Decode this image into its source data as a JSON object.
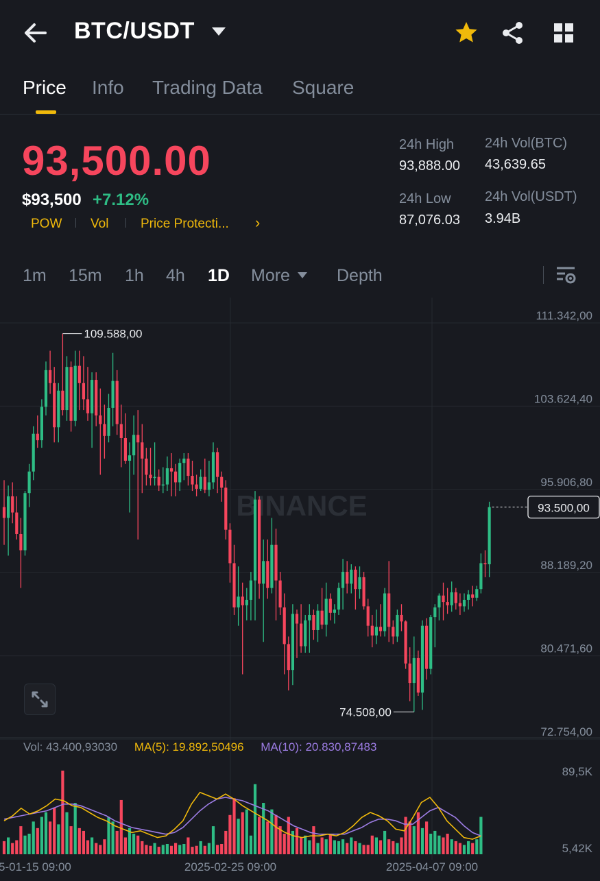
{
  "header": {
    "pair": "BTC/USDT",
    "icons": [
      "back-arrow-icon",
      "caret-down-icon",
      "star-icon",
      "share-icon",
      "grid-icon"
    ],
    "star_color": "#f0b90b"
  },
  "tabs": [
    {
      "label": "Price",
      "active": true
    },
    {
      "label": "Info"
    },
    {
      "label": "Trading Data"
    },
    {
      "label": "Square"
    }
  ],
  "price": {
    "last": "93,500.00",
    "usd": "$93,500",
    "change": "+7.12%",
    "tags": [
      "POW",
      "Vol",
      "Price Protecti..."
    ],
    "tags_arrow": "›"
  },
  "stats": {
    "high_label": "24h High",
    "high": "93,888.00",
    "low_label": "24h Low",
    "low": "87,076.03",
    "vol_btc_label": "24h Vol(BTC)",
    "vol_btc": "43,639.65",
    "vol_usdt_label": "24h Vol(USDT)",
    "vol_usdt": "3.94B"
  },
  "timeframes": {
    "items": [
      "1m",
      "15m",
      "1h",
      "4h",
      "1D"
    ],
    "active": "1D",
    "more": "More",
    "depth": "Depth"
  },
  "colors": {
    "up": "#2ebd85",
    "down": "#f6465d",
    "accent": "#f0b90b",
    "ma5": "#f0b90b",
    "ma10": "#9c7ce3",
    "bg": "#181a20"
  },
  "chart_data": {
    "type": "candlestick",
    "watermark": "BINANCE",
    "price_axis": [
      "111.342,00",
      "103.624,40",
      "95.906,80",
      "88.189,20",
      "80.471,60",
      "72.754,00"
    ],
    "ylim": [
      72754,
      111342
    ],
    "current_price_label": "93.500,00",
    "high_marker": "109.588,00",
    "low_marker": "74.508,00",
    "x_ticks": [
      "5-01-15 09:00",
      "2025-02-25 09:00",
      "2025-04-07 09:00"
    ],
    "candles": [
      {
        "o": 93500,
        "h": 96000,
        "l": 90000,
        "c": 92500
      },
      {
        "o": 92500,
        "h": 95500,
        "l": 89000,
        "c": 94500
      },
      {
        "o": 94500,
        "h": 95800,
        "l": 92000,
        "c": 93000
      },
      {
        "o": 93000,
        "h": 94500,
        "l": 90500,
        "c": 91000
      },
      {
        "o": 91000,
        "h": 92500,
        "l": 86000,
        "c": 89500
      },
      {
        "o": 89500,
        "h": 95000,
        "l": 89000,
        "c": 94800
      },
      {
        "o": 94800,
        "h": 97500,
        "l": 93500,
        "c": 96800
      },
      {
        "o": 96800,
        "h": 101000,
        "l": 96000,
        "c": 100300
      },
      {
        "o": 100300,
        "h": 102000,
        "l": 99000,
        "c": 99700
      },
      {
        "o": 99700,
        "h": 103500,
        "l": 99000,
        "c": 102800
      },
      {
        "o": 102800,
        "h": 107000,
        "l": 102000,
        "c": 106200
      },
      {
        "o": 106200,
        "h": 108000,
        "l": 104000,
        "c": 105000
      },
      {
        "o": 105000,
        "h": 106500,
        "l": 99500,
        "c": 100900
      },
      {
        "o": 100900,
        "h": 105000,
        "l": 99500,
        "c": 104300
      },
      {
        "o": 104300,
        "h": 109588,
        "l": 102000,
        "c": 102500
      },
      {
        "o": 102500,
        "h": 107500,
        "l": 101500,
        "c": 106500
      },
      {
        "o": 106500,
        "h": 107000,
        "l": 100500,
        "c": 101500
      },
      {
        "o": 101500,
        "h": 108000,
        "l": 101000,
        "c": 106600
      },
      {
        "o": 106600,
        "h": 108000,
        "l": 102500,
        "c": 105000
      },
      {
        "o": 105000,
        "h": 107500,
        "l": 102500,
        "c": 103500
      },
      {
        "o": 103500,
        "h": 106500,
        "l": 101500,
        "c": 102200
      },
      {
        "o": 102200,
        "h": 106000,
        "l": 99000,
        "c": 105300
      },
      {
        "o": 105300,
        "h": 106000,
        "l": 101000,
        "c": 102000
      },
      {
        "o": 102000,
        "h": 104500,
        "l": 96500,
        "c": 101200
      },
      {
        "o": 101200,
        "h": 103000,
        "l": 98000,
        "c": 100100
      },
      {
        "o": 100100,
        "h": 104000,
        "l": 99500,
        "c": 102700
      },
      {
        "o": 102700,
        "h": 107800,
        "l": 101000,
        "c": 105200
      },
      {
        "o": 105200,
        "h": 106200,
        "l": 100200,
        "c": 101200
      },
      {
        "o": 101200,
        "h": 103000,
        "l": 97200,
        "c": 99900
      },
      {
        "o": 99900,
        "h": 102200,
        "l": 97500,
        "c": 97800
      },
      {
        "o": 97800,
        "h": 99500,
        "l": 93000,
        "c": 98300
      },
      {
        "o": 98300,
        "h": 102000,
        "l": 96500,
        "c": 100200
      },
      {
        "o": 100200,
        "h": 102500,
        "l": 90500,
        "c": 99500
      },
      {
        "o": 99500,
        "h": 101200,
        "l": 94800,
        "c": 98000
      },
      {
        "o": 98000,
        "h": 99000,
        "l": 95500,
        "c": 96500
      },
      {
        "o": 96500,
        "h": 99000,
        "l": 95500,
        "c": 96200
      },
      {
        "o": 96200,
        "h": 99500,
        "l": 95500,
        "c": 96300
      },
      {
        "o": 96300,
        "h": 97000,
        "l": 95000,
        "c": 95500
      },
      {
        "o": 95500,
        "h": 97200,
        "l": 94800,
        "c": 95600
      },
      {
        "o": 95600,
        "h": 98200,
        "l": 95000,
        "c": 97100
      },
      {
        "o": 97100,
        "h": 98500,
        "l": 94500,
        "c": 96800
      },
      {
        "o": 96800,
        "h": 97500,
        "l": 94500,
        "c": 95800
      },
      {
        "o": 95800,
        "h": 98000,
        "l": 95000,
        "c": 97600
      },
      {
        "o": 97600,
        "h": 98500,
        "l": 96000,
        "c": 98000
      },
      {
        "o": 98000,
        "h": 98500,
        "l": 95500,
        "c": 96400
      },
      {
        "o": 96400,
        "h": 97800,
        "l": 95000,
        "c": 95600
      },
      {
        "o": 95600,
        "h": 96500,
        "l": 94500,
        "c": 95200
      },
      {
        "o": 95200,
        "h": 97000,
        "l": 95000,
        "c": 96300
      },
      {
        "o": 96300,
        "h": 98000,
        "l": 94800,
        "c": 95100
      },
      {
        "o": 95100,
        "h": 97800,
        "l": 94500,
        "c": 95800
      },
      {
        "o": 95800,
        "h": 99500,
        "l": 95200,
        "c": 98600
      },
      {
        "o": 98600,
        "h": 99000,
        "l": 94800,
        "c": 96300
      },
      {
        "o": 96300,
        "h": 96800,
        "l": 94000,
        "c": 95300
      },
      {
        "o": 95300,
        "h": 96000,
        "l": 90500,
        "c": 91400
      },
      {
        "o": 91400,
        "h": 92000,
        "l": 86500,
        "c": 88300
      },
      {
        "o": 88300,
        "h": 90000,
        "l": 83500,
        "c": 84200
      },
      {
        "o": 84200,
        "h": 88000,
        "l": 82500,
        "c": 85200
      },
      {
        "o": 85200,
        "h": 86500,
        "l": 78000,
        "c": 84400
      },
      {
        "o": 84400,
        "h": 86000,
        "l": 83000,
        "c": 84900
      },
      {
        "o": 84900,
        "h": 87500,
        "l": 83000,
        "c": 86700
      },
      {
        "o": 86700,
        "h": 95000,
        "l": 83000,
        "c": 94200
      },
      {
        "o": 94200,
        "h": 94500,
        "l": 85000,
        "c": 86400
      },
      {
        "o": 86400,
        "h": 90500,
        "l": 81000,
        "c": 88500
      },
      {
        "o": 88500,
        "h": 90500,
        "l": 85000,
        "c": 86000
      },
      {
        "o": 86000,
        "h": 92500,
        "l": 85500,
        "c": 90000
      },
      {
        "o": 90000,
        "h": 91500,
        "l": 83000,
        "c": 86700
      },
      {
        "o": 86700,
        "h": 87500,
        "l": 83500,
        "c": 84200
      },
      {
        "o": 84200,
        "h": 85500,
        "l": 78000,
        "c": 80800
      },
      {
        "o": 80800,
        "h": 81500,
        "l": 76500,
        "c": 78400
      },
      {
        "o": 78400,
        "h": 84500,
        "l": 77000,
        "c": 83600
      },
      {
        "o": 83600,
        "h": 84000,
        "l": 79500,
        "c": 82700
      },
      {
        "o": 82700,
        "h": 84500,
        "l": 80000,
        "c": 80600
      },
      {
        "o": 80600,
        "h": 83500,
        "l": 80000,
        "c": 83000
      },
      {
        "o": 83000,
        "h": 84500,
        "l": 80000,
        "c": 83500
      },
      {
        "o": 83500,
        "h": 84000,
        "l": 81200,
        "c": 82100
      },
      {
        "o": 82100,
        "h": 84500,
        "l": 81000,
        "c": 83900
      },
      {
        "o": 83900,
        "h": 86000,
        "l": 82200,
        "c": 82600
      },
      {
        "o": 82600,
        "h": 86500,
        "l": 81500,
        "c": 85000
      },
      {
        "o": 85000,
        "h": 85500,
        "l": 83000,
        "c": 83700
      },
      {
        "o": 83700,
        "h": 84500,
        "l": 82700,
        "c": 84000
      },
      {
        "o": 84000,
        "h": 86500,
        "l": 83500,
        "c": 86000
      },
      {
        "o": 86000,
        "h": 88700,
        "l": 84000,
        "c": 87500
      },
      {
        "o": 87500,
        "h": 88500,
        "l": 85500,
        "c": 86400
      },
      {
        "o": 86400,
        "h": 88200,
        "l": 85500,
        "c": 87700
      },
      {
        "o": 87700,
        "h": 88000,
        "l": 84000,
        "c": 85900
      },
      {
        "o": 85900,
        "h": 88000,
        "l": 85000,
        "c": 87000
      },
      {
        "o": 87000,
        "h": 87500,
        "l": 84000,
        "c": 84300
      },
      {
        "o": 84300,
        "h": 85000,
        "l": 81500,
        "c": 82500
      },
      {
        "o": 82500,
        "h": 83500,
        "l": 80500,
        "c": 81600
      },
      {
        "o": 81600,
        "h": 84000,
        "l": 80800,
        "c": 82400
      },
      {
        "o": 82400,
        "h": 84500,
        "l": 81500,
        "c": 82000
      },
      {
        "o": 82000,
        "h": 86000,
        "l": 81500,
        "c": 85500
      },
      {
        "o": 85500,
        "h": 88500,
        "l": 81000,
        "c": 82400
      },
      {
        "o": 82400,
        "h": 83000,
        "l": 80800,
        "c": 81500
      },
      {
        "o": 81500,
        "h": 84000,
        "l": 81000,
        "c": 83500
      },
      {
        "o": 83500,
        "h": 84500,
        "l": 82000,
        "c": 82900
      },
      {
        "o": 82900,
        "h": 83000,
        "l": 78500,
        "c": 79000
      },
      {
        "o": 79000,
        "h": 80500,
        "l": 75500,
        "c": 77200
      },
      {
        "o": 77200,
        "h": 81500,
        "l": 74508,
        "c": 79500
      },
      {
        "o": 79500,
        "h": 80200,
        "l": 76000,
        "c": 76300
      },
      {
        "o": 76300,
        "h": 83000,
        "l": 74700,
        "c": 82500
      },
      {
        "o": 82500,
        "h": 83200,
        "l": 77500,
        "c": 78500
      },
      {
        "o": 78500,
        "h": 83500,
        "l": 78000,
        "c": 83300
      },
      {
        "o": 83300,
        "h": 84500,
        "l": 80500,
        "c": 84200
      },
      {
        "o": 84200,
        "h": 85500,
        "l": 83000,
        "c": 85300
      },
      {
        "o": 85300,
        "h": 86500,
        "l": 83000,
        "c": 84700
      },
      {
        "o": 84700,
        "h": 86000,
        "l": 83600,
        "c": 84400
      },
      {
        "o": 84400,
        "h": 86600,
        "l": 83800,
        "c": 85600
      },
      {
        "o": 85600,
        "h": 86000,
        "l": 84000,
        "c": 84600
      },
      {
        "o": 84600,
        "h": 85500,
        "l": 83500,
        "c": 84300
      },
      {
        "o": 84300,
        "h": 85500,
        "l": 83800,
        "c": 84900
      },
      {
        "o": 84900,
        "h": 85800,
        "l": 84000,
        "c": 85400
      },
      {
        "o": 85400,
        "h": 86200,
        "l": 84300,
        "c": 85100
      },
      {
        "o": 85100,
        "h": 86200,
        "l": 84800,
        "c": 85900
      },
      {
        "o": 85900,
        "h": 89200,
        "l": 85500,
        "c": 88300
      },
      {
        "o": 88300,
        "h": 89500,
        "l": 87000,
        "c": 88200
      },
      {
        "o": 88200,
        "h": 94000,
        "l": 87000,
        "c": 93500
      }
    ],
    "volume_axis": [
      "89,5K",
      "5,42K"
    ],
    "volume_legend": {
      "vol": "Vol: 43.400,93030",
      "ma5": "MA(5): 19.892,50496",
      "ma10": "MA(10): 20.830,87483"
    },
    "volume_ylim": [
      0,
      89500
    ],
    "volumes": [
      14000,
      18000,
      12000,
      15000,
      30000,
      20000,
      22000,
      35000,
      28000,
      40000,
      45000,
      35000,
      50000,
      32000,
      89500,
      45000,
      30000,
      55000,
      28000,
      25000,
      15000,
      18000,
      12000,
      10000,
      16000,
      40000,
      35000,
      25000,
      58000,
      18000,
      28000,
      22000,
      20000,
      14000,
      10000,
      9000,
      12000,
      8000,
      10000,
      11000,
      9000,
      12000,
      10000,
      11000,
      18000,
      8000,
      9000,
      14000,
      9000,
      12000,
      30000,
      10000,
      11000,
      25000,
      42000,
      60000,
      38000,
      45000,
      48000,
      20000,
      75000,
      40000,
      55000,
      35000,
      48000,
      42000,
      30000,
      22000,
      40000,
      25000,
      28000,
      18000,
      20000,
      15000,
      30000,
      12000,
      18000,
      16000,
      22000,
      15000,
      14000,
      16000,
      12000,
      18000,
      14000,
      12000,
      10000,
      10000,
      20000,
      18000,
      15000,
      25000,
      16000,
      14000,
      12000,
      18000,
      40000,
      35000,
      30000,
      45000,
      28000,
      35000,
      22000,
      25000,
      20000,
      18000,
      22000,
      16000,
      14000,
      12000,
      10000,
      14000,
      12000,
      16000,
      40000
    ],
    "ma5": [
      0.4,
      0.46,
      0.55,
      0.48,
      0.52,
      0.58,
      0.66,
      0.64,
      0.58,
      0.56,
      0.5,
      0.44,
      0.4,
      0.34,
      0.3,
      0.26,
      0.28,
      0.24,
      0.2,
      0.22,
      0.3,
      0.4,
      0.6,
      0.74,
      0.7,
      0.66,
      0.72,
      0.66,
      0.58,
      0.52,
      0.46,
      0.4,
      0.32,
      0.26,
      0.22,
      0.2,
      0.22,
      0.22,
      0.24,
      0.22,
      0.26,
      0.34,
      0.44,
      0.5,
      0.46,
      0.4,
      0.3,
      0.28,
      0.44,
      0.62,
      0.68,
      0.56,
      0.4,
      0.3,
      0.2,
      0.18,
      0.22
    ],
    "ma10": [
      0.42,
      0.44,
      0.46,
      0.48,
      0.5,
      0.52,
      0.56,
      0.6,
      0.6,
      0.58,
      0.54,
      0.5,
      0.46,
      0.4,
      0.36,
      0.32,
      0.3,
      0.28,
      0.26,
      0.24,
      0.26,
      0.32,
      0.42,
      0.52,
      0.6,
      0.66,
      0.68,
      0.66,
      0.64,
      0.6,
      0.56,
      0.52,
      0.46,
      0.4,
      0.34,
      0.3,
      0.26,
      0.24,
      0.24,
      0.24,
      0.24,
      0.28,
      0.32,
      0.38,
      0.42,
      0.42,
      0.4,
      0.36,
      0.36,
      0.44,
      0.52,
      0.56,
      0.5,
      0.44,
      0.34,
      0.26,
      0.22
    ]
  }
}
